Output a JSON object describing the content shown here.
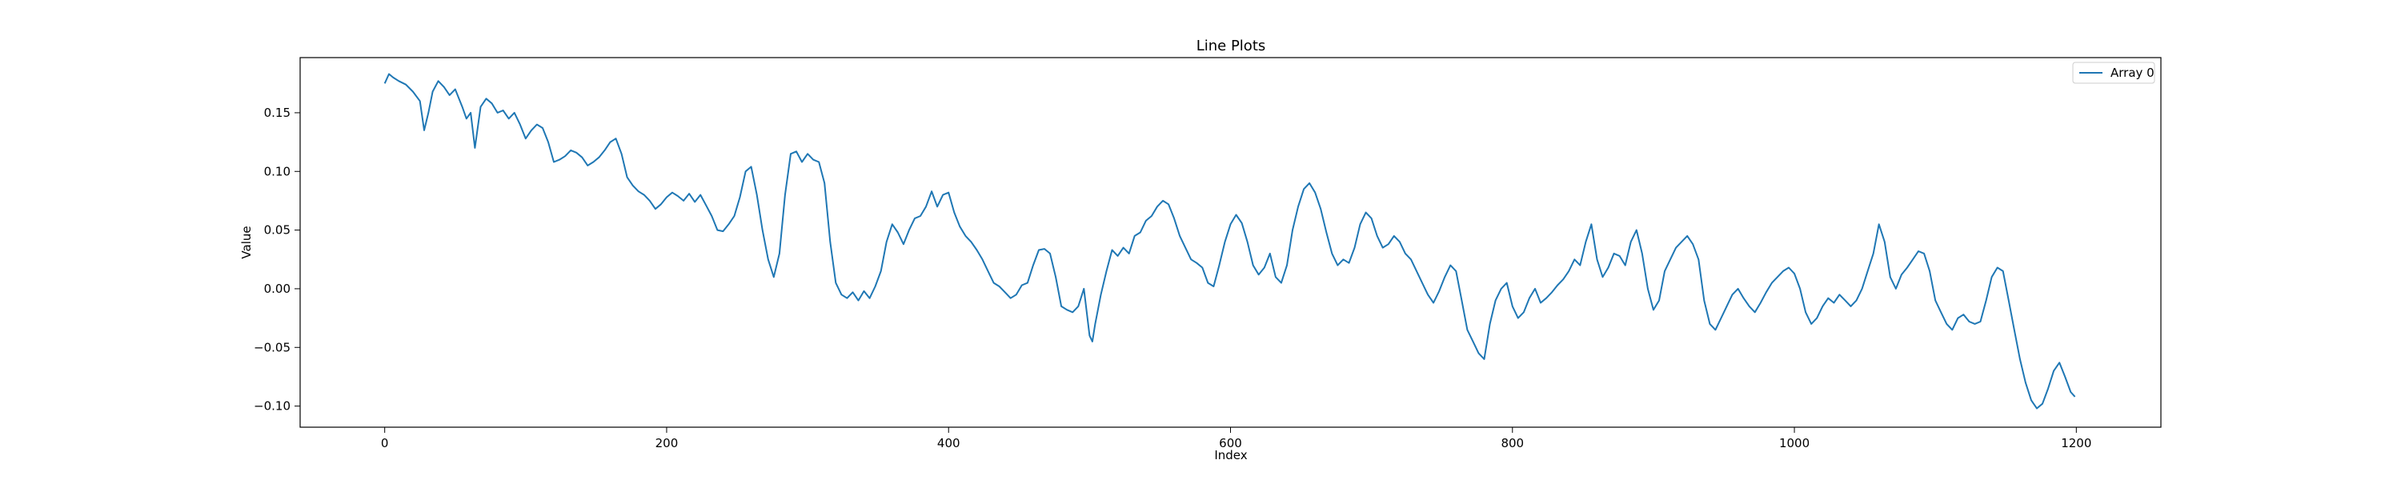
{
  "chart_data": {
    "type": "line",
    "title": "Line Plots",
    "xlabel": "Index",
    "ylabel": "Value",
    "xlim": [
      -60,
      1260
    ],
    "ylim": [
      -0.118,
      0.197
    ],
    "xticks": [
      0,
      200,
      400,
      600,
      800,
      1000,
      1200
    ],
    "xtick_labels": [
      "0",
      "200",
      "400",
      "600",
      "800",
      "1000",
      "1200"
    ],
    "yticks": [
      -0.1,
      -0.05,
      0.0,
      0.05,
      0.1,
      0.15
    ],
    "ytick_labels": [
      "−0.10",
      "−0.05",
      "0.00",
      "0.05",
      "0.10",
      "0.15"
    ],
    "grid": false,
    "legend": "top-right",
    "series": [
      {
        "name": "Array 0",
        "color": "#1f77b4",
        "x": [
          0,
          3,
          6,
          10,
          15,
          20,
          25,
          28,
          31,
          34,
          38,
          42,
          46,
          50,
          55,
          58,
          61,
          64,
          68,
          72,
          76,
          80,
          84,
          88,
          92,
          96,
          100,
          104,
          108,
          112,
          116,
          120,
          124,
          128,
          132,
          136,
          140,
          144,
          148,
          152,
          156,
          160,
          164,
          168,
          172,
          176,
          180,
          184,
          188,
          192,
          196,
          200,
          204,
          208,
          212,
          216,
          220,
          224,
          228,
          232,
          236,
          240,
          244,
          248,
          252,
          256,
          260,
          264,
          268,
          272,
          276,
          280,
          284,
          288,
          292,
          296,
          300,
          304,
          308,
          312,
          316,
          320,
          324,
          328,
          332,
          336,
          340,
          344,
          348,
          352,
          356,
          360,
          364,
          368,
          372,
          376,
          380,
          384,
          388,
          392,
          396,
          400,
          404,
          408,
          412,
          416,
          420,
          424,
          428,
          432,
          436,
          440,
          444,
          448,
          452,
          456,
          460,
          464,
          468,
          472,
          476,
          480,
          484,
          488,
          492,
          496,
          500,
          502,
          504,
          508,
          512,
          516,
          520,
          524,
          528,
          532,
          536,
          540,
          544,
          548,
          552,
          556,
          560,
          564,
          568,
          572,
          576,
          580,
          584,
          588,
          592,
          596,
          600,
          604,
          608,
          612,
          616,
          620,
          624,
          628,
          632,
          636,
          640,
          644,
          648,
          652,
          656,
          660,
          664,
          668,
          672,
          676,
          680,
          684,
          688,
          692,
          696,
          700,
          704,
          708,
          712,
          716,
          720,
          724,
          728,
          732,
          736,
          740,
          744,
          748,
          752,
          756,
          760,
          764,
          768,
          772,
          776,
          780,
          784,
          788,
          792,
          796,
          800,
          804,
          808,
          812,
          816,
          820,
          824,
          828,
          832,
          836,
          840,
          844,
          848,
          852,
          856,
          860,
          864,
          868,
          872,
          876,
          880,
          884,
          888,
          892,
          896,
          900,
          904,
          908,
          912,
          916,
          920,
          924,
          928,
          932,
          936,
          940,
          944,
          948,
          952,
          956,
          960,
          964,
          968,
          972,
          976,
          980,
          984,
          988,
          992,
          996,
          1000,
          1004,
          1008,
          1012,
          1016,
          1020,
          1024,
          1028,
          1032,
          1036,
          1040,
          1044,
          1048,
          1052,
          1056,
          1060,
          1064,
          1068,
          1072,
          1076,
          1080,
          1084,
          1088,
          1092,
          1096,
          1100,
          1104,
          1108,
          1112,
          1116,
          1120,
          1124,
          1128,
          1132,
          1136,
          1140,
          1144,
          1148,
          1152,
          1156,
          1160,
          1164,
          1168,
          1172,
          1176,
          1180,
          1184,
          1188,
          1192,
          1196,
          1199
        ],
        "y": [
          0.175,
          0.183,
          0.18,
          0.177,
          0.174,
          0.168,
          0.16,
          0.135,
          0.15,
          0.168,
          0.177,
          0.172,
          0.165,
          0.17,
          0.155,
          0.145,
          0.15,
          0.12,
          0.155,
          0.162,
          0.158,
          0.15,
          0.152,
          0.145,
          0.15,
          0.14,
          0.128,
          0.135,
          0.14,
          0.137,
          0.125,
          0.108,
          0.11,
          0.113,
          0.118,
          0.116,
          0.112,
          0.105,
          0.108,
          0.112,
          0.118,
          0.125,
          0.128,
          0.115,
          0.095,
          0.088,
          0.083,
          0.08,
          0.075,
          0.068,
          0.072,
          0.078,
          0.082,
          0.079,
          0.075,
          0.081,
          0.074,
          0.08,
          0.071,
          0.062,
          0.05,
          0.049,
          0.055,
          0.062,
          0.078,
          0.1,
          0.104,
          0.08,
          0.05,
          0.025,
          0.01,
          0.03,
          0.08,
          0.115,
          0.117,
          0.108,
          0.115,
          0.11,
          0.108,
          0.09,
          0.04,
          0.005,
          -0.005,
          -0.008,
          -0.003,
          -0.01,
          -0.002,
          -0.008,
          0.002,
          0.015,
          0.04,
          0.055,
          0.048,
          0.038,
          0.05,
          0.06,
          0.062,
          0.07,
          0.083,
          0.07,
          0.08,
          0.082,
          0.065,
          0.053,
          0.045,
          0.04,
          0.033,
          0.025,
          0.015,
          0.005,
          0.002,
          -0.003,
          -0.008,
          -0.005,
          0.003,
          0.005,
          0.02,
          0.033,
          0.034,
          0.03,
          0.01,
          -0.015,
          -0.018,
          -0.02,
          -0.015,
          0.0,
          -0.04,
          -0.045,
          -0.03,
          -0.005,
          0.015,
          0.033,
          0.028,
          0.035,
          0.03,
          0.045,
          0.048,
          0.058,
          0.062,
          0.07,
          0.075,
          0.072,
          0.06,
          0.045,
          0.035,
          0.025,
          0.022,
          0.018,
          0.005,
          0.002,
          0.02,
          0.04,
          0.055,
          0.063,
          0.056,
          0.04,
          0.02,
          0.012,
          0.018,
          0.03,
          0.01,
          0.005,
          0.02,
          0.05,
          0.07,
          0.085,
          0.09,
          0.082,
          0.068,
          0.048,
          0.03,
          0.02,
          0.025,
          0.022,
          0.035,
          0.055,
          0.065,
          0.06,
          0.045,
          0.035,
          0.038,
          0.045,
          0.04,
          0.03,
          0.025,
          0.015,
          0.005,
          -0.005,
          -0.012,
          -0.002,
          0.01,
          0.02,
          0.015,
          -0.01,
          -0.035,
          -0.045,
          -0.055,
          -0.06,
          -0.03,
          -0.01,
          0.0,
          0.005,
          -0.015,
          -0.025,
          -0.02,
          -0.008,
          0.0,
          -0.012,
          -0.008,
          -0.003,
          0.003,
          0.008,
          0.015,
          0.025,
          0.02,
          0.04,
          0.055,
          0.025,
          0.01,
          0.018,
          0.03,
          0.028,
          0.02,
          0.04,
          0.05,
          0.03,
          0.0,
          -0.018,
          -0.01,
          0.015,
          0.025,
          0.035,
          0.04,
          0.045,
          0.038,
          0.025,
          -0.01,
          -0.03,
          -0.035,
          -0.025,
          -0.015,
          -0.005,
          0.0,
          -0.008,
          -0.015,
          -0.02,
          -0.012,
          -0.003,
          0.005,
          0.01,
          0.015,
          0.018,
          0.013,
          0.0,
          -0.02,
          -0.03,
          -0.025,
          -0.015,
          -0.008,
          -0.012,
          -0.005,
          -0.01,
          -0.015,
          -0.01,
          0.0,
          0.015,
          0.03,
          0.055,
          0.04,
          0.01,
          0.0,
          0.012,
          0.018,
          0.025,
          0.032,
          0.03,
          0.015,
          -0.01,
          -0.02,
          -0.03,
          -0.035,
          -0.025,
          -0.022,
          -0.028,
          -0.03,
          -0.028,
          -0.01,
          0.01,
          0.018,
          0.015,
          -0.01,
          -0.035,
          -0.06,
          -0.08,
          -0.095,
          -0.102,
          -0.098,
          -0.085,
          -0.07,
          -0.063,
          -0.075,
          -0.088,
          -0.092
        ]
      }
    ]
  }
}
